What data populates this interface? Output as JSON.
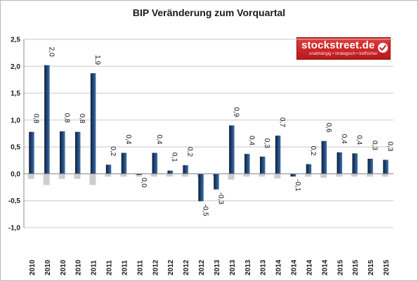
{
  "title": "BIP Veränderung zum Vorquartal",
  "logo": {
    "name": "stockstreet.de",
    "tagline": "unabhängig • strategisch • treffsicher",
    "brand_color": "#c9272b"
  },
  "colors": {
    "bar_dark": "#0e1e3a",
    "bar_light": "#3f6fa8",
    "shadow": "#c4c4c4",
    "grid": "#c8c8c8"
  },
  "chart_data": {
    "type": "bar",
    "title": "BIP Veränderung zum Vorquartal",
    "xlabel": "",
    "ylabel": "",
    "ylim": [
      -1.0,
      2.5
    ],
    "yticks": [
      "2,5",
      "2,0",
      "1,5",
      "1,0",
      "0,5",
      "0,0",
      "-0,5",
      "-1,0"
    ],
    "ytick_values": [
      2.5,
      2.0,
      1.5,
      1.0,
      0.5,
      0.0,
      -0.5,
      -1.0
    ],
    "grid": true,
    "categories": [
      "2010",
      "2010",
      "2010",
      "2010",
      "2011",
      "2011",
      "2011",
      "2011",
      "2012",
      "2012",
      "2012",
      "2012",
      "2013",
      "2013",
      "2013",
      "2013",
      "2014",
      "2014",
      "2014",
      "2014",
      "2015",
      "2015",
      "2015",
      "2015"
    ],
    "values": [
      0.78,
      2.02,
      0.79,
      0.78,
      1.87,
      0.17,
      0.39,
      -0.02,
      0.39,
      0.06,
      0.16,
      -0.51,
      -0.29,
      0.9,
      0.37,
      0.32,
      0.71,
      -0.05,
      0.18,
      0.61,
      0.4,
      0.38,
      0.28,
      0.26
    ],
    "data_labels": [
      "0,8",
      "2,0",
      "0,8",
      "0,8",
      "1,9",
      "0,2",
      "0,4",
      "0,0",
      "0,4",
      "0,1",
      "0,2",
      "-0,5",
      "-0,3",
      "0,9",
      "0,4",
      "0,3",
      "0,7",
      "-0,1",
      "0,2",
      "0,6",
      "0,4",
      "0,4",
      "0,3",
      "0,3"
    ]
  }
}
